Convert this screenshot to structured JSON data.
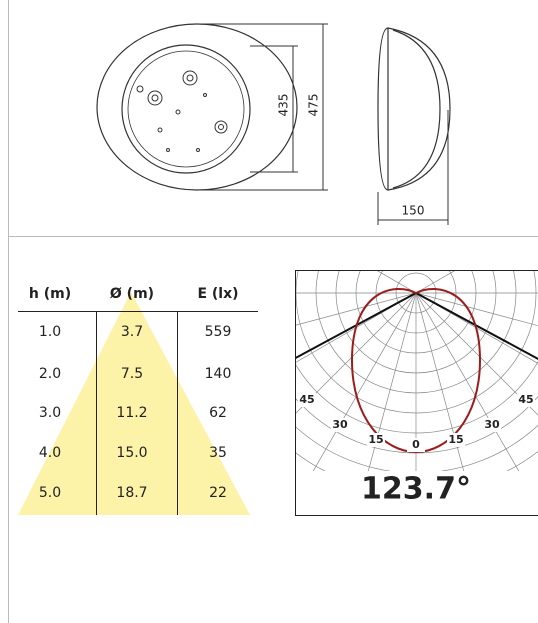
{
  "drawing": {
    "dimensions": [
      "435",
      "475",
      "150"
    ]
  },
  "table": {
    "headers": [
      "h (m)",
      "Ø (m)",
      "E (lx)"
    ],
    "rows": [
      [
        "1.0",
        "3.7",
        "559"
      ],
      [
        "2.0",
        "7.5",
        "140"
      ],
      [
        "3.0",
        "11.2",
        "62"
      ],
      [
        "4.0",
        "15.0",
        "35"
      ],
      [
        "5.0",
        "18.7",
        "22"
      ]
    ]
  },
  "polar": {
    "angle_labels": [
      "45",
      "30",
      "15",
      "0",
      "15",
      "30",
      "45"
    ],
    "beam_angle": "123.7°"
  }
}
